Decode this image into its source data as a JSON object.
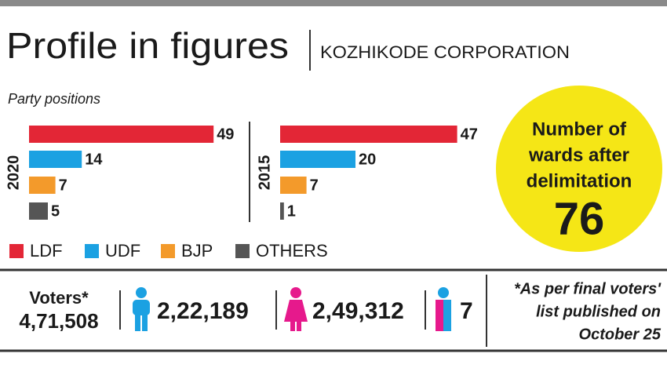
{
  "title": "Profile in figures",
  "subtitle": "KOZHIKODE CORPORATION",
  "section_label": "Party positions",
  "legend": [
    {
      "name": "LDF",
      "color": "#e32636"
    },
    {
      "name": "UDF",
      "color": "#1ba1e2"
    },
    {
      "name": "BJP",
      "color": "#f39a2b"
    },
    {
      "name": "OTHERS",
      "color": "#555555"
    }
  ],
  "chart_data": [
    {
      "type": "bar",
      "orientation": "horizontal",
      "title": "2020",
      "values": [
        49,
        14,
        7,
        5
      ],
      "xlim": [
        0,
        50
      ]
    },
    {
      "type": "bar",
      "orientation": "horizontal",
      "title": "2015",
      "values": [
        47,
        20,
        7,
        1
      ],
      "xlim": [
        0,
        50
      ]
    }
  ],
  "callout": {
    "lines": [
      "Number of",
      "wards after",
      "delimitation"
    ],
    "value": "76",
    "color": "#f5e616"
  },
  "voters": {
    "label": "Voters*",
    "total": "4,71,508",
    "male": "2,22,189",
    "female": "2,49,312",
    "transgender": "7",
    "note": [
      "*As per final voters'",
      "list published on",
      "October 25"
    ]
  }
}
